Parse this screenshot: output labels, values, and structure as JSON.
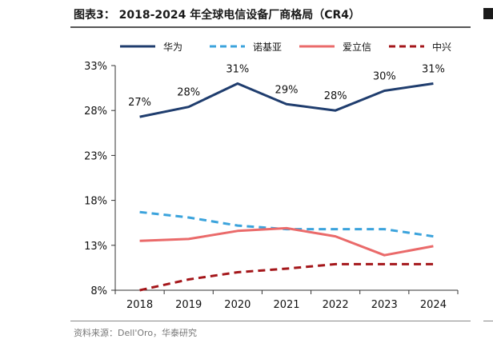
{
  "header": {
    "title": "图表3： 2018-2024 年全球电信设备厂商格局（CR4）"
  },
  "footer": {
    "source": "资料来源：Dell'Oro，华泰研究"
  },
  "chart_data": {
    "type": "line",
    "x": [
      "2018",
      "2019",
      "2020",
      "2021",
      "2022",
      "2023",
      "2024"
    ],
    "ylim": [
      8,
      33
    ],
    "yticks": [
      8,
      13,
      18,
      23,
      28,
      33
    ],
    "ytick_labels": [
      "8%",
      "13%",
      "18%",
      "23%",
      "28%",
      "33%"
    ],
    "grid": false,
    "legend_position": "top",
    "series": [
      {
        "name": "华为",
        "color": "#1f3d6e",
        "dash": "solid",
        "values": [
          27.3,
          28.4,
          31.0,
          28.7,
          28.0,
          30.2,
          31.0
        ],
        "labels": [
          "27%",
          "28%",
          "31%",
          "29%",
          "28%",
          "30%",
          "31%"
        ]
      },
      {
        "name": "诺基亚",
        "color": "#3ba3dc",
        "dash": "dashed",
        "values": [
          16.7,
          16.1,
          15.2,
          14.8,
          14.8,
          14.8,
          14.0
        ]
      },
      {
        "name": "爱立信",
        "color": "#ea6a6a",
        "dash": "solid",
        "values": [
          13.5,
          13.7,
          14.6,
          14.9,
          14.0,
          11.9,
          12.9
        ]
      },
      {
        "name": "中兴",
        "color": "#a4161a",
        "dash": "dashed",
        "values": [
          8.0,
          9.2,
          10.0,
          10.4,
          10.9,
          10.9,
          10.9
        ]
      }
    ]
  }
}
